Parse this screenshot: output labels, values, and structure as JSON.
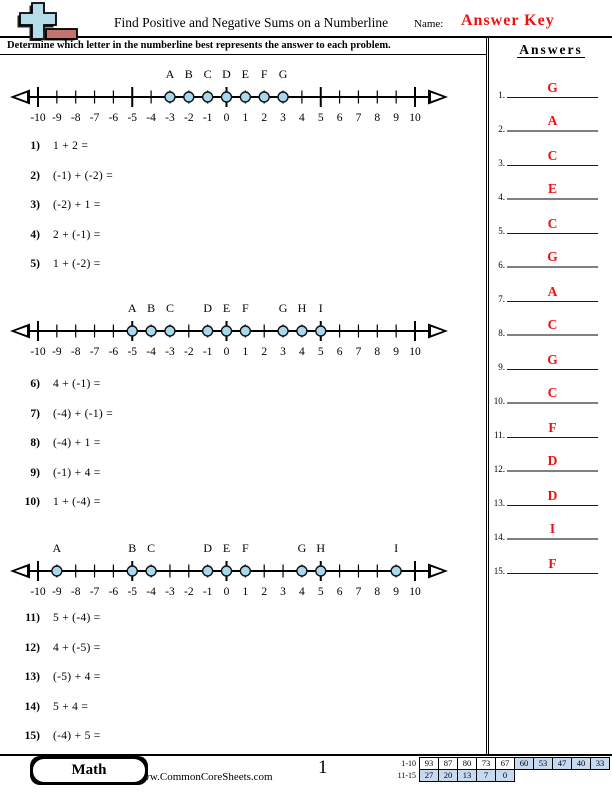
{
  "header": {
    "title": "Find Positive and Negative Sums on a Numberline",
    "name_label": "Name:",
    "answer_key": "Answer Key"
  },
  "instruction": "Determine which letter in the numberline best represents the answer to each problem.",
  "answers_panel": {
    "heading": "Answers",
    "items": [
      {
        "num": "1.",
        "letter": "G"
      },
      {
        "num": "2.",
        "letter": "A"
      },
      {
        "num": "3.",
        "letter": "C"
      },
      {
        "num": "4.",
        "letter": "E"
      },
      {
        "num": "5.",
        "letter": "C"
      },
      {
        "num": "6.",
        "letter": "G"
      },
      {
        "num": "7.",
        "letter": "A"
      },
      {
        "num": "8.",
        "letter": "C"
      },
      {
        "num": "9.",
        "letter": "G"
      },
      {
        "num": "10.",
        "letter": "C"
      },
      {
        "num": "11.",
        "letter": "F"
      },
      {
        "num": "12.",
        "letter": "D"
      },
      {
        "num": "13.",
        "letter": "D"
      },
      {
        "num": "14.",
        "letter": "I"
      },
      {
        "num": "15.",
        "letter": "F"
      }
    ]
  },
  "sections": [
    {
      "numberline": {
        "min": -10,
        "max": 10,
        "major_every": 5,
        "points": [
          {
            "label": "A",
            "value": -3
          },
          {
            "label": "B",
            "value": -2
          },
          {
            "label": "C",
            "value": -1
          },
          {
            "label": "D",
            "value": 0
          },
          {
            "label": "E",
            "value": 1
          },
          {
            "label": "F",
            "value": 2
          },
          {
            "label": "G",
            "value": 3
          }
        ]
      },
      "problems": [
        {
          "num": "1)",
          "expr": "1 + 2 ="
        },
        {
          "num": "2)",
          "expr": "(-1) + (-2) ="
        },
        {
          "num": "3)",
          "expr": "(-2) + 1 ="
        },
        {
          "num": "4)",
          "expr": "2 + (-1) ="
        },
        {
          "num": "5)",
          "expr": "1 + (-2) ="
        }
      ]
    },
    {
      "numberline": {
        "min": -10,
        "max": 10,
        "major_every": 5,
        "points": [
          {
            "label": "A",
            "value": -5
          },
          {
            "label": "B",
            "value": -4
          },
          {
            "label": "C",
            "value": -3
          },
          {
            "label": "D",
            "value": -1
          },
          {
            "label": "E",
            "value": 0
          },
          {
            "label": "F",
            "value": 1
          },
          {
            "label": "G",
            "value": 3
          },
          {
            "label": "H",
            "value": 4
          },
          {
            "label": "I",
            "value": 5
          }
        ]
      },
      "problems": [
        {
          "num": "6)",
          "expr": "4 + (-1) ="
        },
        {
          "num": "7)",
          "expr": "(-4) + (-1) ="
        },
        {
          "num": "8)",
          "expr": "(-4) + 1 ="
        },
        {
          "num": "9)",
          "expr": "(-1) + 4 ="
        },
        {
          "num": "10)",
          "expr": "1 + (-4) ="
        }
      ]
    },
    {
      "numberline": {
        "min": -10,
        "max": 10,
        "major_every": 5,
        "points": [
          {
            "label": "A",
            "value": -9
          },
          {
            "label": "B",
            "value": -5
          },
          {
            "label": "C",
            "value": -4
          },
          {
            "label": "D",
            "value": -1
          },
          {
            "label": "E",
            "value": 0
          },
          {
            "label": "F",
            "value": 1
          },
          {
            "label": "G",
            "value": 4
          },
          {
            "label": "H",
            "value": 5
          },
          {
            "label": "I",
            "value": 9
          }
        ]
      },
      "problems": [
        {
          "num": "11)",
          "expr": "5 + (-4) ="
        },
        {
          "num": "12)",
          "expr": "4 + (-5) ="
        },
        {
          "num": "13)",
          "expr": "(-5) + 4 ="
        },
        {
          "num": "14)",
          "expr": "5 + 4 ="
        },
        {
          "num": "15)",
          "expr": "(-4) + 5 ="
        }
      ]
    }
  ],
  "styles": {
    "accent_red": "#ee1111",
    "point_fill": "#a6d8ee",
    "point_stroke": "#111111",
    "cell_blue": "#c6d9f1",
    "icon_cross": "#b5dde9",
    "icon_bar": "#c0766d"
  },
  "footer": {
    "subject": "Math",
    "website": "www.CommonCoreSheets.com",
    "page_number": "1",
    "score_grid": [
      {
        "label": "1-10",
        "cells": [
          {
            "v": "93",
            "hl": false
          },
          {
            "v": "87",
            "hl": false
          },
          {
            "v": "80",
            "hl": false
          },
          {
            "v": "73",
            "hl": false
          },
          {
            "v": "67",
            "hl": false
          },
          {
            "v": "60",
            "hl": true
          },
          {
            "v": "53",
            "hl": true
          },
          {
            "v": "47",
            "hl": true
          },
          {
            "v": "40",
            "hl": true
          },
          {
            "v": "33",
            "hl": true
          }
        ]
      },
      {
        "label": "11-15",
        "cells": [
          {
            "v": "27",
            "hl": true
          },
          {
            "v": "20",
            "hl": true
          },
          {
            "v": "13",
            "hl": true
          },
          {
            "v": "7",
            "hl": true
          },
          {
            "v": "0",
            "hl": true
          }
        ]
      }
    ]
  }
}
